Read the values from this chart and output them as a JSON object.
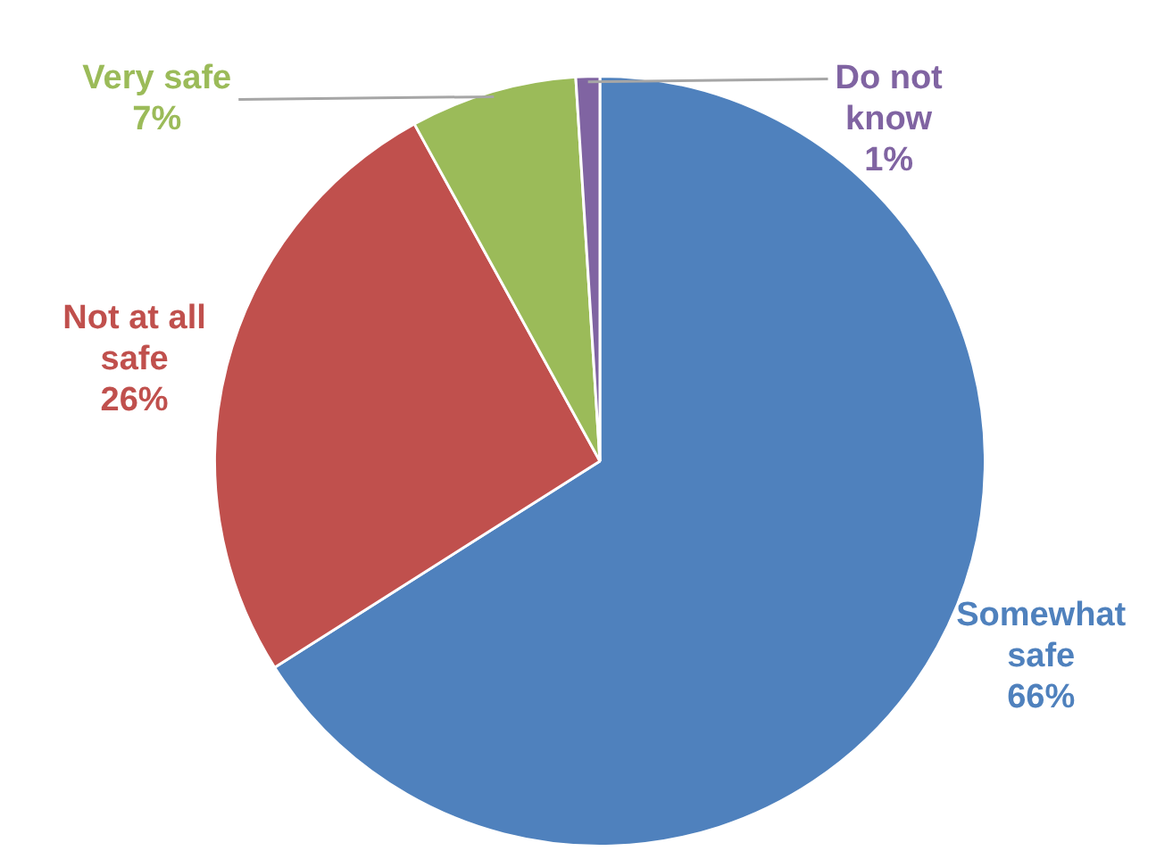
{
  "chart_data": {
    "type": "pie",
    "categories": [
      "Somewhat safe",
      "Not at all safe",
      "Very safe",
      "Do not know"
    ],
    "values": [
      66,
      26,
      7,
      1
    ],
    "colors": [
      "#4f81bd",
      "#c0504d",
      "#9bbb59",
      "#8064a2"
    ],
    "value_labels": [
      "66%",
      "26%",
      "7%",
      "1%"
    ],
    "legend": false
  }
}
